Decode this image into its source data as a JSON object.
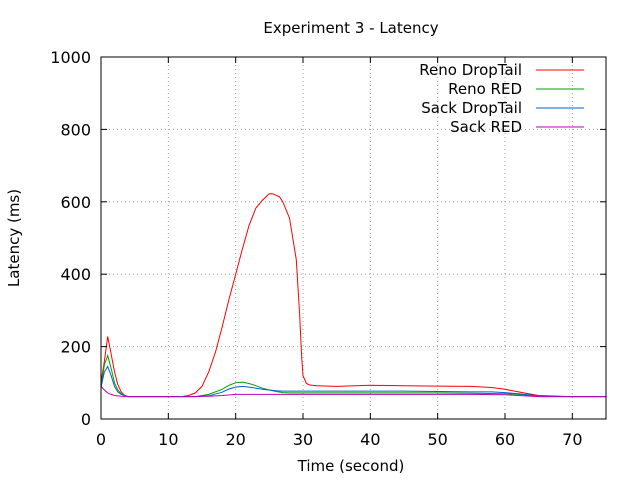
{
  "chart_data": {
    "type": "line",
    "title": "Experiment 3 - Latency",
    "xlabel": "Time (second)",
    "ylabel": "Latency (ms)",
    "xlim": [
      0,
      75
    ],
    "ylim": [
      0,
      1000
    ],
    "xticks": [
      0,
      10,
      20,
      30,
      40,
      50,
      60,
      70
    ],
    "yticks": [
      0,
      200,
      400,
      600,
      800,
      1000
    ],
    "grid": true,
    "legend_position": "top-right",
    "series": [
      {
        "name": "Reno DropTail",
        "color": "#ff0000",
        "x": [
          0,
          0.5,
          1,
          1.5,
          2,
          2.5,
          3,
          3.5,
          4,
          6,
          8,
          10,
          12,
          13,
          14,
          15,
          16,
          17,
          18,
          19,
          20,
          21,
          22,
          23,
          24,
          25,
          25.5,
          26,
          26.5,
          27,
          28,
          29,
          29.5,
          29.8,
          30,
          30.5,
          31,
          32,
          35,
          40,
          45,
          50,
          55,
          58,
          60,
          62,
          64,
          65,
          70,
          75
        ],
        "y": [
          100,
          160,
          228,
          180,
          130,
          95,
          75,
          65,
          62,
          62,
          62,
          62,
          62,
          65,
          72,
          90,
          130,
          185,
          255,
          330,
          400,
          470,
          535,
          583,
          605,
          622,
          622,
          618,
          614,
          600,
          555,
          440,
          290,
          170,
          120,
          98,
          94,
          92,
          90,
          93,
          92,
          91,
          90,
          87,
          82,
          75,
          68,
          65,
          62,
          62
        ]
      },
      {
        "name": "Reno RED",
        "color": "#00a000",
        "x": [
          0,
          0.5,
          1,
          1.5,
          2,
          2.5,
          3,
          4,
          6,
          8,
          10,
          12,
          14,
          16,
          18,
          19,
          20,
          21,
          22,
          23,
          24,
          25,
          26,
          27,
          28,
          30,
          35,
          40,
          45,
          50,
          55,
          60,
          62,
          64,
          65,
          70,
          75
        ],
        "y": [
          85,
          150,
          175,
          140,
          100,
          80,
          70,
          62,
          62,
          62,
          62,
          62,
          62,
          68,
          82,
          93,
          100,
          102,
          98,
          92,
          85,
          80,
          76,
          73,
          72,
          72,
          72,
          72,
          72,
          72,
          71,
          70,
          68,
          65,
          62,
          62,
          62
        ]
      },
      {
        "name": "Sack DropTail",
        "color": "#0060d0",
        "x": [
          0,
          0.5,
          1,
          1.5,
          2,
          2.5,
          3,
          4,
          6,
          8,
          10,
          12,
          14,
          16,
          18,
          19,
          20,
          21,
          22,
          23,
          24,
          25,
          26,
          27,
          28,
          30,
          35,
          40,
          45,
          50,
          55,
          58,
          60,
          62,
          64,
          65,
          70,
          75
        ],
        "y": [
          88,
          130,
          145,
          120,
          90,
          75,
          68,
          62,
          62,
          62,
          62,
          62,
          62,
          64,
          74,
          83,
          88,
          90,
          88,
          85,
          82,
          80,
          78,
          77,
          77,
          77,
          77,
          77,
          77,
          76,
          75,
          75,
          73,
          70,
          66,
          63,
          62,
          62
        ]
      },
      {
        "name": "Sack RED",
        "color": "#c000c0",
        "x": [
          0,
          0.5,
          1,
          1.5,
          2,
          3,
          4,
          6,
          8,
          10,
          12,
          14,
          16,
          18,
          20,
          22,
          25,
          30,
          35,
          40,
          45,
          50,
          55,
          60,
          62,
          64,
          65,
          70,
          75
        ],
        "y": [
          90,
          80,
          72,
          68,
          65,
          63,
          62,
          62,
          62,
          62,
          62,
          62,
          63,
          65,
          68,
          68,
          68,
          68,
          68,
          68,
          68,
          68,
          68,
          67,
          65,
          63,
          62,
          62,
          62
        ]
      }
    ]
  }
}
